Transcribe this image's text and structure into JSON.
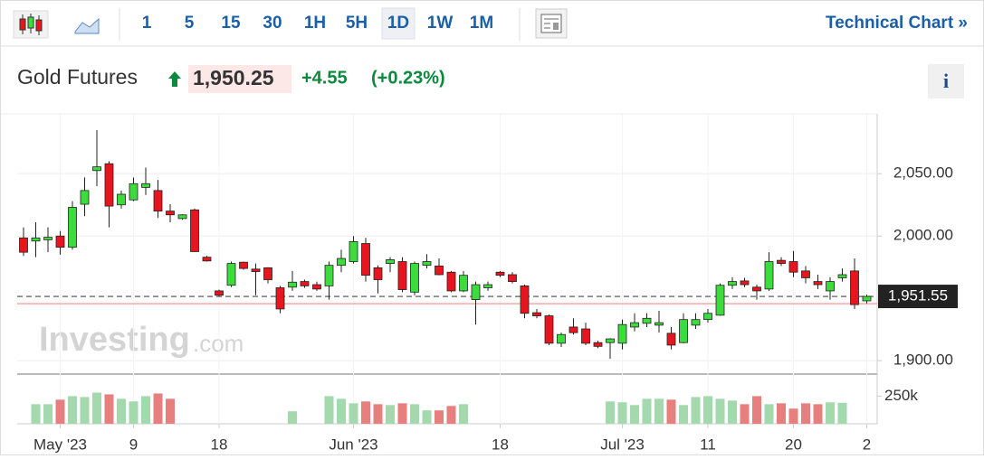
{
  "toolbar": {
    "intervals": [
      "1",
      "5",
      "15",
      "30",
      "1H",
      "5H",
      "1D",
      "1W",
      "1M"
    ],
    "active": 6,
    "link": "Technical Chart »"
  },
  "header": {
    "name": "Gold Futures",
    "price": "1,950.25",
    "change": "+4.55",
    "change_pct": "(+0.23%)",
    "info": "i"
  },
  "watermark": {
    "brand": "Investing",
    "suffix": ".com"
  },
  "chart_data": {
    "type": "candlestick",
    "categories": [
      null,
      null,
      null,
      "May '23",
      null,
      null,
      null,
      null,
      null,
      "9",
      null,
      null,
      null,
      null,
      null,
      null,
      "18",
      null,
      null,
      null,
      null,
      null,
      null,
      null,
      null,
      null,
      null,
      "Jun '23",
      null,
      null,
      null,
      null,
      null,
      null,
      null,
      null,
      null,
      null,
      null,
      "18",
      null,
      null,
      null,
      null,
      null,
      null,
      null,
      null,
      null,
      "Jul '23",
      null,
      null,
      null,
      null,
      null,
      null,
      "11",
      null,
      null,
      null,
      null,
      null,
      null,
      "20",
      null,
      null,
      null,
      null,
      null,
      "2"
    ],
    "open": [
      1998.5,
      1996,
      1997,
      2000,
      1991,
      2025.5,
      2052.5,
      2058,
      2025,
      2029,
      2039,
      2036.5,
      2020,
      2014,
      2021,
      1983,
      1956,
      1960.5,
      1979,
      1973.5,
      1974.5,
      1958.5,
      1959,
      1963.5,
      1961,
      1960,
      1976.5,
      1979.5,
      1994,
      1974.5,
      1978,
      1979.5,
      1955,
      1976.5,
      1976,
      1971,
      1956,
      1949,
      1958.5,
      1971,
      1969,
      1960,
      1938.5,
      1936,
      1914,
      1927,
      1925.5,
      1914.5,
      1914.5,
      1914,
      1927,
      1930,
      1928.5,
      1922,
      1914.5,
      1928.5,
      1933,
      1936.5,
      1960.5,
      1964,
      1959,
      1957.5,
      1980.5,
      1979.5,
      1972,
      1963.5,
      1956,
      1966.5,
      1972,
      1948
    ],
    "high": [
      2007,
      2011,
      2007,
      2004,
      2028,
      2047,
      2085,
      2060,
      2036.5,
      2047,
      2055,
      2045,
      2025.5,
      2017.5,
      2022,
      1984,
      1957,
      1979.5,
      1979.5,
      1978,
      1975,
      1960,
      1972,
      1965,
      1963.5,
      1979.5,
      1989,
      2000,
      1998.5,
      1976.5,
      1983,
      1983,
      1979.5,
      1985.5,
      1982,
      1972,
      1972,
      1963.5,
      1963.5,
      1972,
      1971,
      1961,
      1941.5,
      1937,
      1922.5,
      1934,
      1930.5,
      1916,
      1918,
      1933,
      1938,
      1938,
      1940,
      1927,
      1938,
      1938,
      1941.5,
      1962,
      1967,
      1966.5,
      1961,
      1987,
      1983,
      1988,
      1976,
      1969,
      1967,
      1974,
      1982,
      1953
    ],
    "low": [
      1984,
      1983,
      1987,
      1985,
      1989,
      2016,
      2040,
      2007,
      2022,
      2028,
      2033,
      2014.5,
      2011,
      2013,
      1987.5,
      1979.5,
      1952,
      1959,
      1973,
      1952.5,
      1962,
      1938,
      1956,
      1958.5,
      1956,
      1949,
      1971,
      1978,
      1963.5,
      1954,
      1971,
      1955,
      1952.5,
      1974,
      1968.5,
      1955,
      1955,
      1929,
      1956,
      1967,
      1962,
      1934,
      1934,
      1912.5,
      1911,
      1921,
      1912.5,
      1910,
      1901.5,
      1909,
      1923.5,
      1927,
      1922.5,
      1909,
      1914,
      1925.5,
      1930.5,
      1936,
      1957.5,
      1959,
      1949,
      1956,
      1976,
      1967,
      1962,
      1957.5,
      1949,
      1963.5,
      1941.5,
      1946
    ],
    "close": [
      1987,
      1998.5,
      1999,
      1991,
      2023,
      2036.5,
      2055.5,
      2024,
      2033.5,
      2042,
      2042,
      2020,
      2017,
      2017,
      1987.5,
      1980,
      1952.5,
      1978,
      1974,
      1971.5,
      1965,
      1941.5,
      1963,
      1960,
      1957.5,
      1976.5,
      1982,
      1995.5,
      1968.5,
      1965,
      1981,
      1957,
      1978,
      1979.5,
      1969,
      1956,
      1968.5,
      1961,
      1961,
      1968.5,
      1963.5,
      1938,
      1936,
      1914,
      1921,
      1922.5,
      1914,
      1911.5,
      1917.5,
      1929,
      1930.5,
      1934,
      1930.5,
      1912.5,
      1933,
      1933,
      1938,
      1960.5,
      1963.5,
      1961,
      1956,
      1979.5,
      1978,
      1971,
      1966.5,
      1961,
      1963.5,
      1969,
      1945,
      1951.55
    ],
    "volume": [
      null,
      177000,
      177000,
      218000,
      250000,
      242000,
      282000,
      266000,
      226000,
      202000,
      250000,
      274000,
      226000,
      null,
      null,
      null,
      null,
      null,
      null,
      null,
      null,
      null,
      113000,
      null,
      null,
      250000,
      226000,
      185000,
      202000,
      177000,
      169000,
      185000,
      177000,
      121000,
      121000,
      161000,
      177000,
      null,
      null,
      null,
      null,
      null,
      null,
      null,
      null,
      null,
      null,
      null,
      202000,
      194000,
      169000,
      226000,
      226000,
      218000,
      169000,
      242000,
      250000,
      226000,
      210000,
      177000,
      250000,
      177000,
      185000,
      137000,
      185000,
      177000,
      194000,
      190000,
      null,
      null
    ],
    "up_color": "#3ddc3d",
    "down_color": "#e8141e",
    "volume_up_color": "#a3d9ac",
    "volume_down_color": "#e77f7f",
    "ylim": [
      1890,
      2098
    ],
    "yticks": [
      {
        "value": 1900,
        "label": "1,900.00"
      },
      {
        "value": 2000,
        "label": "2,000.00"
      },
      {
        "value": 2050,
        "label": "2,050.00"
      }
    ],
    "y2lim": [
      0,
      425000
    ],
    "y2ticks": [
      {
        "value": 250000,
        "label": "250k"
      }
    ],
    "last_price": {
      "value": 1951.55,
      "label": "1,951.55"
    },
    "prev_close": 1945.7,
    "grid": true
  }
}
